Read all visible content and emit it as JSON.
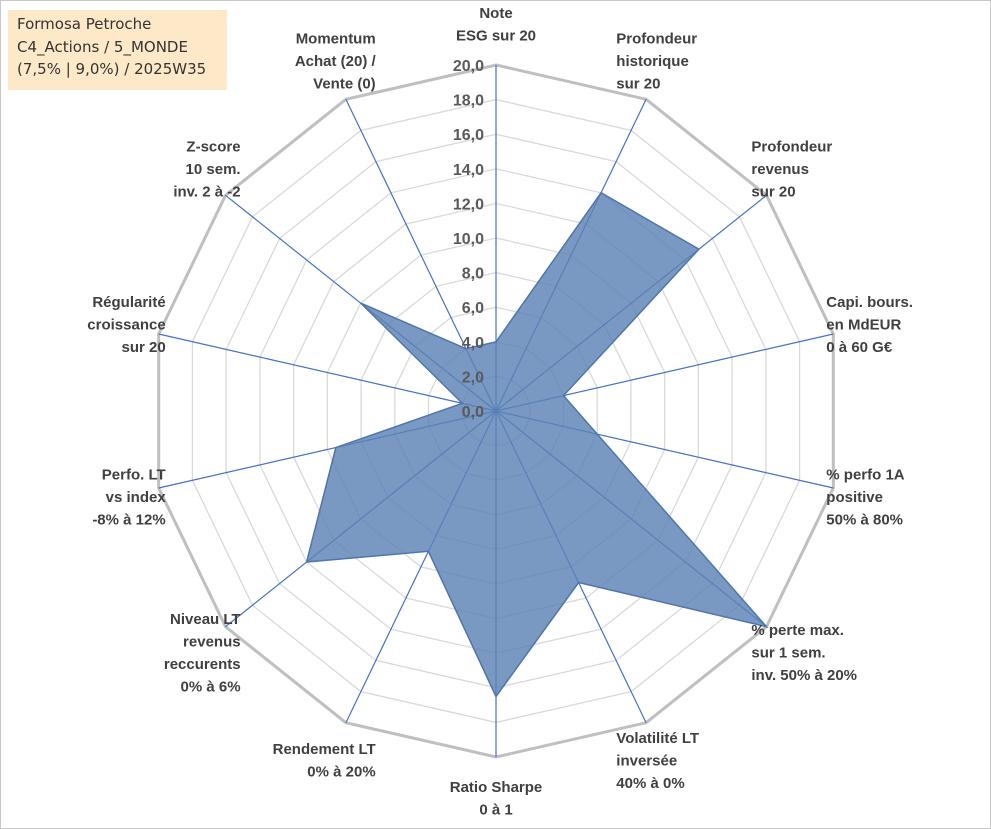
{
  "info_box": {
    "line1": "Formosa Petroche",
    "line2": "C4_Actions / 5_MONDE",
    "line3": "(7,5% | 9,0%) / 2025W35"
  },
  "chart_data": {
    "type": "radar",
    "title": "",
    "rmin": 0,
    "rmax": 20,
    "tick_step": 2,
    "tick_labels": [
      "0,0",
      "2,0",
      "4,0",
      "6,0",
      "8,0",
      "10,0",
      "12,0",
      "14,0",
      "16,0",
      "18,0",
      "20,0"
    ],
    "axes": [
      {
        "label": [
          "Note",
          "ESG sur 20"
        ],
        "value": 4.0
      },
      {
        "label": [
          "Profondeur",
          "historique",
          "sur 20"
        ],
        "value": 14.0
      },
      {
        "label": [
          "Profondeur",
          "revenus",
          "sur 20"
        ],
        "value": 15.0
      },
      {
        "label": [
          "Capi. bours.",
          "en MdEUR",
          "0 à 60 G€"
        ],
        "value": 4.0
      },
      {
        "label": [
          "% perfo 1A",
          "positive",
          "50% à 80%"
        ],
        "value": 6.0
      },
      {
        "label": [
          "% perte max.",
          "sur 1 sem.",
          "inv. 50% à 20%"
        ],
        "value": 20.0
      },
      {
        "label": [
          "Volatilité LT",
          "inversée",
          "40% à 0%"
        ],
        "value": 11.0
      },
      {
        "label": [
          "Ratio Sharpe",
          "0 à 1"
        ],
        "value": 16.5
      },
      {
        "label": [
          "Rendement LT",
          "0% à 20%"
        ],
        "value": 9.0
      },
      {
        "label": [
          "Niveau LT",
          "revenus",
          "reccurents",
          "0% à 6%"
        ],
        "value": 14.0
      },
      {
        "label": [
          "Perfo. LT",
          "vs index",
          "-8% à 12%"
        ],
        "value": 9.5
      },
      {
        "label": [
          "Régularité",
          "croissance",
          "sur 20"
        ],
        "value": 2.0
      },
      {
        "label": [
          "Z-score",
          "10 sem.",
          "inv. 2 à -2"
        ],
        "value": 10.0
      },
      {
        "label": [
          "Momentum",
          "Achat (20) /",
          "Vente (0)"
        ],
        "value": 4.0
      }
    ],
    "colors": {
      "fill": "#5b83b6",
      "edge": "#4f76ab",
      "grid_outer": "#bfbfbf",
      "grid_inner": "#d9d9d9",
      "spoke": "#4472c4"
    },
    "legend": "none"
  }
}
